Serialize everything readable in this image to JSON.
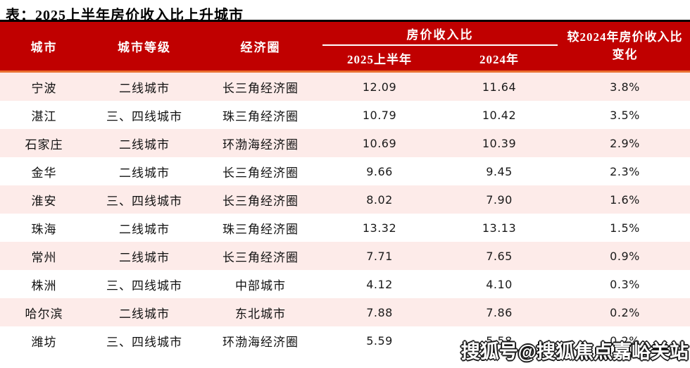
{
  "page": {
    "title": "表：2025上半年房价收入比上升城市",
    "watermark": "搜狐号@搜狐焦点嘉峪关站"
  },
  "colors": {
    "header_background": "#C00000",
    "header_text": "#ffffff",
    "divider_orange": "#E97132",
    "row_alt_pink": "#FDEBE9",
    "top_border_black": "#000000"
  },
  "table": {
    "headers": {
      "city": "城市",
      "tier": "城市等级",
      "region": "经济圈",
      "ratio_group": "房价收入比",
      "ratio_2025": "2025上半年",
      "ratio_2024": "2024年",
      "change": "较2024年房价收入比变化"
    },
    "rows": [
      {
        "city": "宁波",
        "tier": "二线城市",
        "region": "长三角经济圈",
        "ratio_2025": "12.09",
        "ratio_2024": "11.64",
        "change": "3.8%"
      },
      {
        "city": "湛江",
        "tier": "三、四线城市",
        "region": "珠三角经济圈",
        "ratio_2025": "10.79",
        "ratio_2024": "10.42",
        "change": "3.5%"
      },
      {
        "city": "石家庄",
        "tier": "二线城市",
        "region": "环渤海经济圈",
        "ratio_2025": "10.69",
        "ratio_2024": "10.39",
        "change": "2.9%"
      },
      {
        "city": "金华",
        "tier": "二线城市",
        "region": "长三角经济圈",
        "ratio_2025": "9.66",
        "ratio_2024": "9.45",
        "change": "2.3%"
      },
      {
        "city": "淮安",
        "tier": "三、四线城市",
        "region": "长三角经济圈",
        "ratio_2025": "8.02",
        "ratio_2024": "7.90",
        "change": "1.6%"
      },
      {
        "city": "珠海",
        "tier": "二线城市",
        "region": "珠三角经济圈",
        "ratio_2025": "13.32",
        "ratio_2024": "13.13",
        "change": "1.5%"
      },
      {
        "city": "常州",
        "tier": "二线城市",
        "region": "长三角经济圈",
        "ratio_2025": "7.71",
        "ratio_2024": "7.65",
        "change": "0.9%"
      },
      {
        "city": "株洲",
        "tier": "三、四线城市",
        "region": "中部城市",
        "ratio_2025": "4.12",
        "ratio_2024": "4.10",
        "change": "0.3%"
      },
      {
        "city": "哈尔滨",
        "tier": "二线城市",
        "region": "东北城市",
        "ratio_2025": "7.88",
        "ratio_2024": "7.86",
        "change": "0.2%"
      },
      {
        "city": "潍坊",
        "tier": "三、四线城市",
        "region": "环渤海经济圈",
        "ratio_2025": "5.59",
        "ratio_2024": "5.58",
        "change": "0.2%"
      }
    ]
  }
}
